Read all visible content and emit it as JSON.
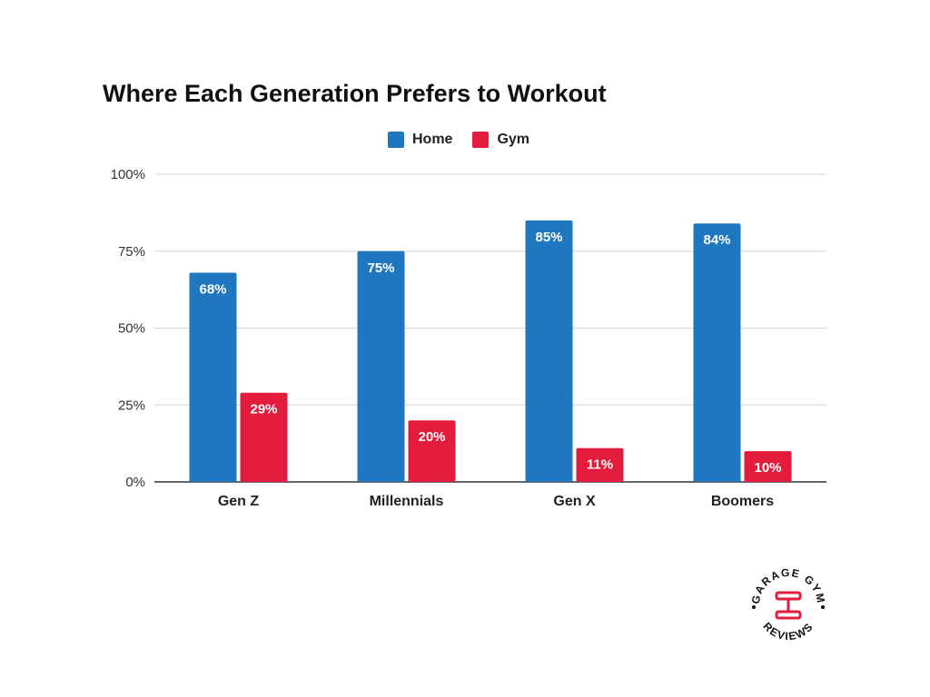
{
  "chart_data": {
    "type": "bar",
    "title": "Where Each Generation Prefers to Workout",
    "categories": [
      "Gen Z",
      "Millennials",
      "Gen X",
      "Boomers"
    ],
    "series": [
      {
        "name": "Home",
        "color": "#1f77c0",
        "values": [
          68,
          75,
          85,
          84
        ],
        "labels": [
          "68%",
          "75%",
          "85%",
          "84%"
        ]
      },
      {
        "name": "Gym",
        "color": "#e31c3d",
        "values": [
          29,
          20,
          11,
          10
        ],
        "labels": [
          "29%",
          "20%",
          "11%",
          "10%"
        ]
      }
    ],
    "y_ticks": [
      "0%",
      "25%",
      "50%",
      "75%",
      "100%"
    ],
    "ylim": [
      0,
      100
    ],
    "grid": true,
    "legend_position": "top-center"
  },
  "logo": {
    "top_text": "GARAGE GYM",
    "bottom_text": "REVIEWS",
    "accent_color": "#e31c3d"
  }
}
